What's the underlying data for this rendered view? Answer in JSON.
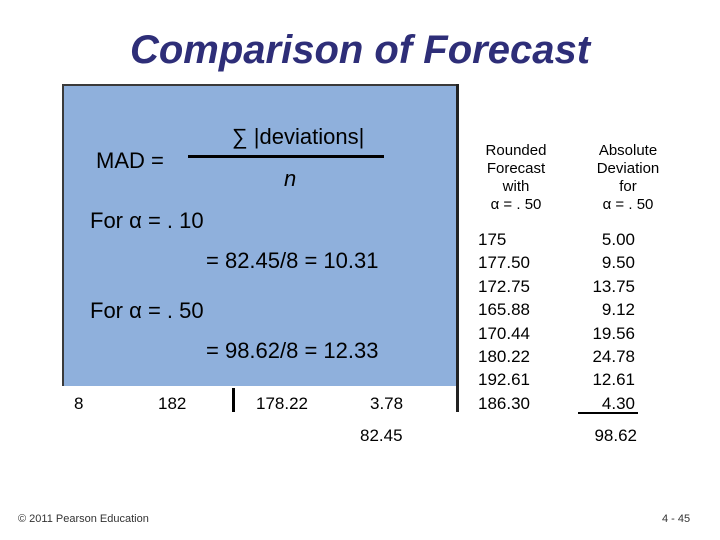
{
  "slide": {
    "title": "Comparison of Forecast",
    "formula": {
      "lhs": "MAD =",
      "numerator": "∑ |deviations|",
      "denominator": "n"
    },
    "alpha_10": {
      "line1": "For α = . 10",
      "line2": "= 82.45/8 = 10.31"
    },
    "alpha_50": {
      "line1": "For α = . 50",
      "line2": "= 98.62/8 = 12.33"
    },
    "bottom_row": {
      "period": "8",
      "demand": "182",
      "forecast": "178.22",
      "deviation": "3.78",
      "total": "82.45"
    },
    "rounded_forecast": {
      "header": "Rounded\nForecast\nwith\nα = . 50",
      "values": [
        "175",
        "177.50",
        "172.75",
        "165.88",
        "170.44",
        "180.22",
        "192.61",
        "186.30"
      ]
    },
    "absolute_deviation": {
      "header": "Absolute\nDeviation\nfor\nα = . 50",
      "values": [
        "5.00",
        "9.50",
        "13.75",
        "9.12",
        "19.56",
        "24.78",
        "12.61",
        "4.30"
      ],
      "total": "98.62"
    },
    "footer": {
      "copyright": "© 2011 Pearson Education",
      "page": "4 - 45"
    },
    "colors": {
      "title": "#2e2e78",
      "panel": "#8fb0dc"
    }
  }
}
